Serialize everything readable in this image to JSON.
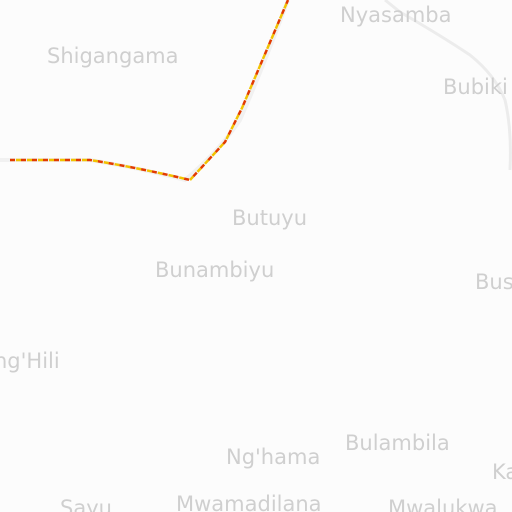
{
  "places": {
    "nyasamba": "Nyasamba",
    "shigangama": "Shigangama",
    "bubiki": "Bubiki",
    "butuyu": "Butuyu",
    "bunambiyu": "Bunambiyu",
    "bus": "Bus",
    "nghili": "ng'Hili",
    "bulambila": "Bulambila",
    "nghama": "Ng'hama",
    "ka": "Ka",
    "sayu": "Sayu",
    "mwamadilana": "Mwamadilana",
    "mwalukwa": "Mwalukwa"
  },
  "colors": {
    "background": "#fcfcfc",
    "label": "#cfcfcf",
    "road": "#ececec",
    "boundary_dash_red": "#e23b00",
    "boundary_dash_yellow": "#f2c200"
  }
}
